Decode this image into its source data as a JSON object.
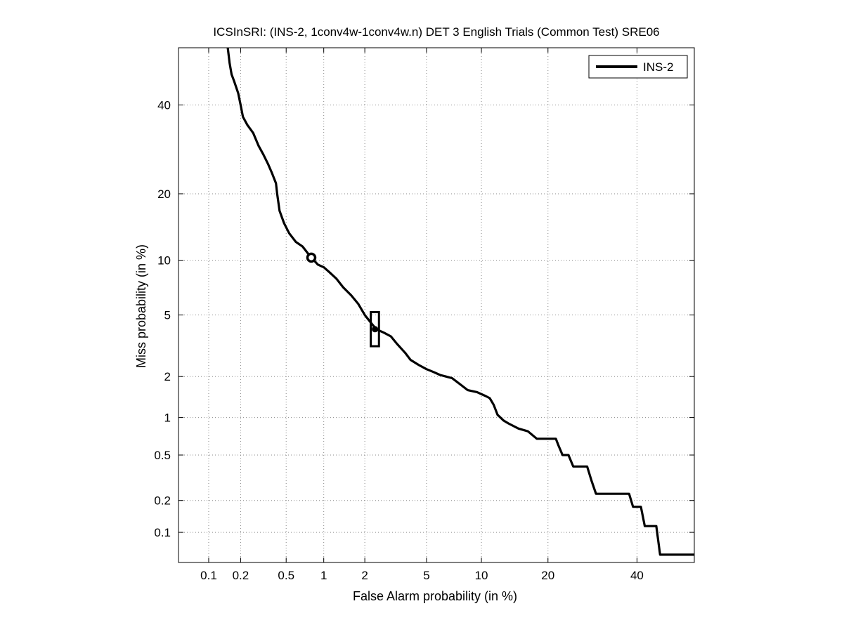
{
  "chart_data": {
    "type": "line",
    "title": "ICSInSRI: (INS-2, 1conv4w-1conv4w.n) DET 3 English Trials (Common Test) SRE06",
    "xlabel": "False Alarm probability (in %)",
    "ylabel": "Miss probability (in %)",
    "x_scale": "probit",
    "y_scale": "probit",
    "xlim": [
      0.05,
      55
    ],
    "ylim": [
      0.05,
      55
    ],
    "x_ticks": [
      0.1,
      0.2,
      0.5,
      1,
      2,
      5,
      10,
      20,
      40
    ],
    "x_tick_labels": [
      "0.1",
      "0.2",
      "0.5",
      "1",
      "2",
      "5",
      "10",
      "20",
      "40"
    ],
    "y_ticks": [
      0.1,
      0.2,
      0.5,
      1,
      2,
      5,
      10,
      20,
      40
    ],
    "y_tick_labels": [
      "0.1",
      "0.2",
      "0.5",
      "1",
      "2",
      "5",
      "10",
      "20",
      "40"
    ],
    "grid": true,
    "legend_position": "top-right",
    "series": [
      {
        "name": "INS-2",
        "color": "#000000",
        "points": [
          [
            0.152,
            55
          ],
          [
            0.158,
            51
          ],
          [
            0.165,
            48
          ],
          [
            0.175,
            46
          ],
          [
            0.19,
            43
          ],
          [
            0.2,
            40
          ],
          [
            0.21,
            37
          ],
          [
            0.23,
            35
          ],
          [
            0.26,
            33
          ],
          [
            0.29,
            30
          ],
          [
            0.32,
            28
          ],
          [
            0.35,
            26
          ],
          [
            0.38,
            24
          ],
          [
            0.41,
            22
          ],
          [
            0.42,
            20
          ],
          [
            0.44,
            17
          ],
          [
            0.48,
            15
          ],
          [
            0.53,
            13.5
          ],
          [
            0.6,
            12.3
          ],
          [
            0.68,
            11.7
          ],
          [
            0.78,
            10.5
          ],
          [
            0.9,
            9.5
          ],
          [
            1.0,
            9.2
          ],
          [
            1.1,
            8.7
          ],
          [
            1.25,
            8.0
          ],
          [
            1.4,
            7.2
          ],
          [
            1.6,
            6.5
          ],
          [
            1.8,
            5.8
          ],
          [
            2.0,
            5.0
          ],
          [
            2.2,
            4.5
          ],
          [
            2.4,
            4.1
          ],
          [
            2.7,
            3.9
          ],
          [
            3.0,
            3.7
          ],
          [
            3.3,
            3.3
          ],
          [
            3.7,
            2.9
          ],
          [
            4.0,
            2.6
          ],
          [
            4.5,
            2.4
          ],
          [
            5.0,
            2.25
          ],
          [
            5.5,
            2.15
          ],
          [
            6.0,
            2.05
          ],
          [
            7.0,
            1.95
          ],
          [
            7.8,
            1.75
          ],
          [
            8.5,
            1.6
          ],
          [
            9.5,
            1.55
          ],
          [
            10.5,
            1.45
          ],
          [
            11.0,
            1.4
          ],
          [
            11.5,
            1.25
          ],
          [
            12.0,
            1.05
          ],
          [
            12.8,
            0.95
          ],
          [
            13.5,
            0.9
          ],
          [
            15.0,
            0.82
          ],
          [
            16.5,
            0.78
          ],
          [
            18.0,
            0.68
          ],
          [
            20.0,
            0.68
          ],
          [
            21.5,
            0.68
          ],
          [
            22.0,
            0.6
          ],
          [
            22.8,
            0.5
          ],
          [
            24.0,
            0.5
          ],
          [
            25.0,
            0.4
          ],
          [
            28.0,
            0.4
          ],
          [
            29.0,
            0.3
          ],
          [
            30.0,
            0.23
          ],
          [
            32.0,
            0.23
          ],
          [
            38.0,
            0.23
          ],
          [
            39.0,
            0.175
          ],
          [
            41.0,
            0.175
          ],
          [
            42.0,
            0.115
          ],
          [
            45.0,
            0.115
          ],
          [
            46.0,
            0.06
          ],
          [
            55.0,
            0.06
          ]
        ]
      }
    ],
    "markers": [
      {
        "shape": "circle",
        "x": 0.8,
        "y": 10.3
      },
      {
        "shape": "rectangle",
        "x": 2.35,
        "y": 4.1,
        "x_range": [
          2.2,
          2.5
        ],
        "y_range": [
          3.2,
          5.2
        ]
      }
    ]
  }
}
